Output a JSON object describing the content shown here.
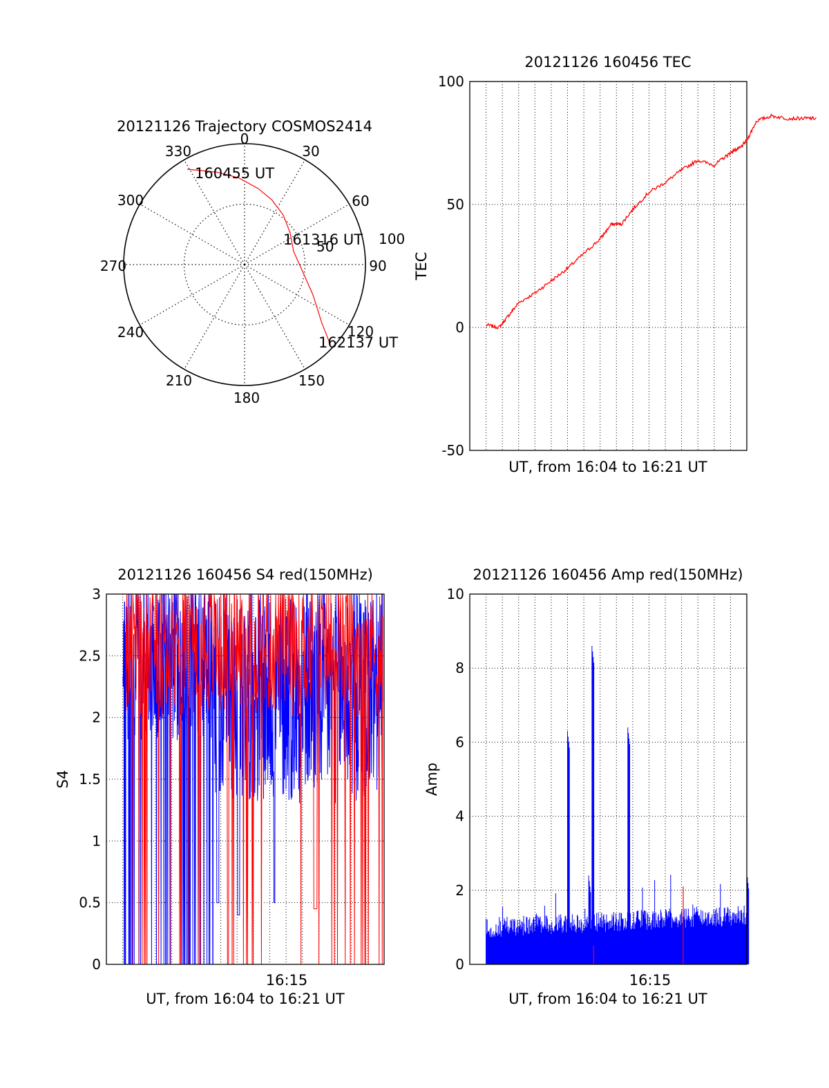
{
  "colors": {
    "red": "#ff0000",
    "blue": "#0000ff",
    "axis": "#000000",
    "grid": "#000000"
  },
  "chart_data": [
    {
      "type": "polar",
      "title": "20121126 Trajectory COSMOS2414",
      "azimuth_labels": [
        "0",
        "30",
        "60",
        "90",
        "120",
        "150",
        "180",
        "210",
        "240",
        "270",
        "300",
        "330"
      ],
      "radius_labels": [
        "50",
        "100"
      ],
      "annotations": [
        "160455 UT",
        "161316 UT",
        "162137 UT"
      ],
      "trajectory": {
        "azimuth_deg": [
          329,
          343,
          356,
          10,
          23,
          38,
          55,
          75,
          96,
          114,
          127,
          133
        ],
        "zenith_deg": [
          92,
          80,
          72,
          64,
          58,
          52,
          46,
          42,
          48,
          62,
          80,
          97
        ]
      }
    },
    {
      "type": "line",
      "title": "20121126 160456 TEC",
      "xlabel": "UT, from 16:04 to 16:21 UT",
      "ylabel": "TEC",
      "ylim": [
        -50,
        100
      ],
      "yticks": [
        "100",
        "50",
        "0",
        "-50"
      ],
      "grid": true,
      "series": [
        {
          "color": "red",
          "x_minutes_after_1604": [
            1.0,
            1.8,
            2.4,
            3.0,
            4.0,
            5.0,
            6.0,
            7.0,
            8.0,
            8.7,
            9.3,
            10.0,
            11.0,
            12.0,
            13.0,
            14.0,
            15.0,
            15.8,
            16.2,
            16.6,
            17.0,
            17.6,
            18.5,
            19.5,
            20.6,
            21.3
          ],
          "y": [
            1,
            0,
            5,
            10,
            14,
            19,
            24,
            30,
            36,
            42,
            42,
            48,
            55,
            59,
            64,
            68,
            66,
            70,
            72,
            73,
            76,
            84,
            86,
            85,
            85,
            85
          ]
        }
      ]
    },
    {
      "type": "line",
      "title": "20121126 160456 S4 red(150MHz)",
      "xlabel": "UT, from 16:04 to 16:21 UT",
      "ylabel": "S4",
      "ylim": [
        0,
        3
      ],
      "yticks": [
        "3",
        "2.5",
        "2",
        "1.5",
        "1",
        "0.5",
        "0"
      ],
      "xtick_labels": [
        "16:15"
      ],
      "grid": true,
      "series": [
        {
          "color": "blue",
          "note": "dense fluctuating S4 trace, mostly 1.2-3, dropouts to 0 early"
        },
        {
          "color": "red",
          "note": "overlaid S4 trace, high values 2-3, dip to ~0.45 near 16:16"
        }
      ]
    },
    {
      "type": "bar",
      "title": "20121126 160456 Amp red(150MHz)",
      "xlabel": "UT, from 16:04 to 16:21 UT",
      "ylabel": "Amp",
      "ylim": [
        0,
        10
      ],
      "yticks": [
        "10",
        "8",
        "6",
        "4",
        "2",
        "0"
      ],
      "xtick_labels": [
        "16:15"
      ],
      "grid": true,
      "series": [
        {
          "color": "blue",
          "note": "dense amplitude trace ~0.7-1.3 with spikes",
          "spikes_x_minutes_after_1604": [
            6.0,
            7.3,
            7.5,
            9.7,
            17.0
          ],
          "spikes_y": [
            6.3,
            2.4,
            8.6,
            6.4,
            2.5
          ]
        },
        {
          "color": "red",
          "note": "sparse red samples",
          "spikes_x_minutes_after_1604": [
            7.6,
            13.1
          ],
          "spikes_y": [
            0.5,
            2.1
          ]
        }
      ]
    }
  ]
}
